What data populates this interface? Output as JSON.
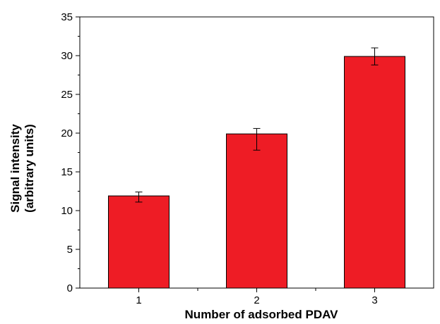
{
  "chart_data": {
    "type": "bar",
    "title": "",
    "xlabel": "Number of adsorbed PDAV",
    "ylabel_lines": [
      "Signal intensity",
      "(arbitrary units)"
    ],
    "categories": [
      "1",
      "2",
      "3"
    ],
    "values": [
      11.9,
      19.9,
      29.9
    ],
    "error_bars": [
      {
        "low": 11.1,
        "high": 12.4
      },
      {
        "low": 17.8,
        "high": 20.6
      },
      {
        "low": 28.8,
        "high": 31.0
      }
    ],
    "ylim": [
      0,
      35
    ],
    "y_major_ticks": [
      0,
      5,
      10,
      15,
      20,
      25,
      30,
      35
    ],
    "y_minor_step": 2.5,
    "bar_color": "#ee1c25",
    "legend": "none",
    "grid": false
  }
}
